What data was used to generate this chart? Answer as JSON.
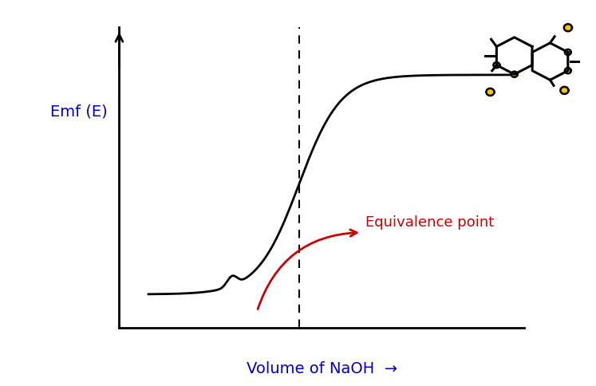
{
  "background_color": "#ffffff",
  "curve_color": "#000000",
  "curve_linewidth": 2.0,
  "dashed_line_color": "#000000",
  "dashed_line_x": 0.48,
  "equivalence_arrow_color": "#cc0000",
  "equivalence_text": "Equivalence point",
  "equivalence_text_color": "#cc0000",
  "equivalence_text_fontsize": 13,
  "ylabel": "Emf (E)",
  "ylabel_color": "#0000cc",
  "ylabel_fontsize": 14,
  "xlabel": "Volume of NaOH",
  "xlabel_color": "#0000cc",
  "xlabel_fontsize": 14,
  "axis_color": "#000000",
  "molecule_bg_color": "#f5c800",
  "figsize": [
    7.47,
    4.84
  ],
  "dpi": 100
}
